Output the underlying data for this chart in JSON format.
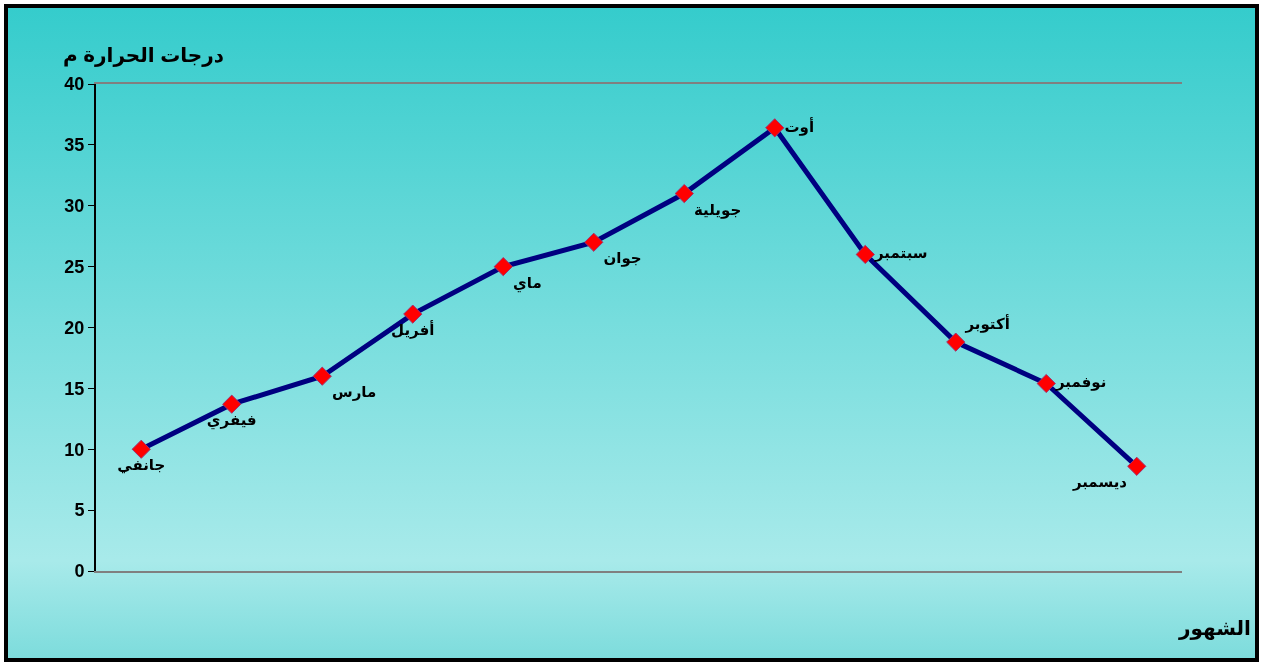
{
  "chart_data": {
    "type": "line",
    "ylabel": "درجات الحرارة م",
    "xlabel": "الشهور",
    "categories": [
      "جانفي",
      "فيفري",
      "مارس",
      "أفريل",
      "ماي",
      "جوان",
      "جويلية",
      "أوت",
      "سبتمبر",
      "أكتوبر",
      "نوفمبر",
      "ديسمبر"
    ],
    "series": [
      {
        "color": "#000080",
        "values": [
          10,
          13.7,
          16,
          21.1,
          25,
          27,
          31,
          36.4,
          26,
          18.8,
          15.4,
          8.6
        ]
      }
    ],
    "ylim": [
      0,
      40
    ],
    "yticks": [
      0,
      5,
      10,
      15,
      20,
      25,
      30,
      35,
      40
    ],
    "grid": false,
    "legend": false,
    "marker": "diamond",
    "line_style": "solid",
    "tick_labels": "y"
  }
}
